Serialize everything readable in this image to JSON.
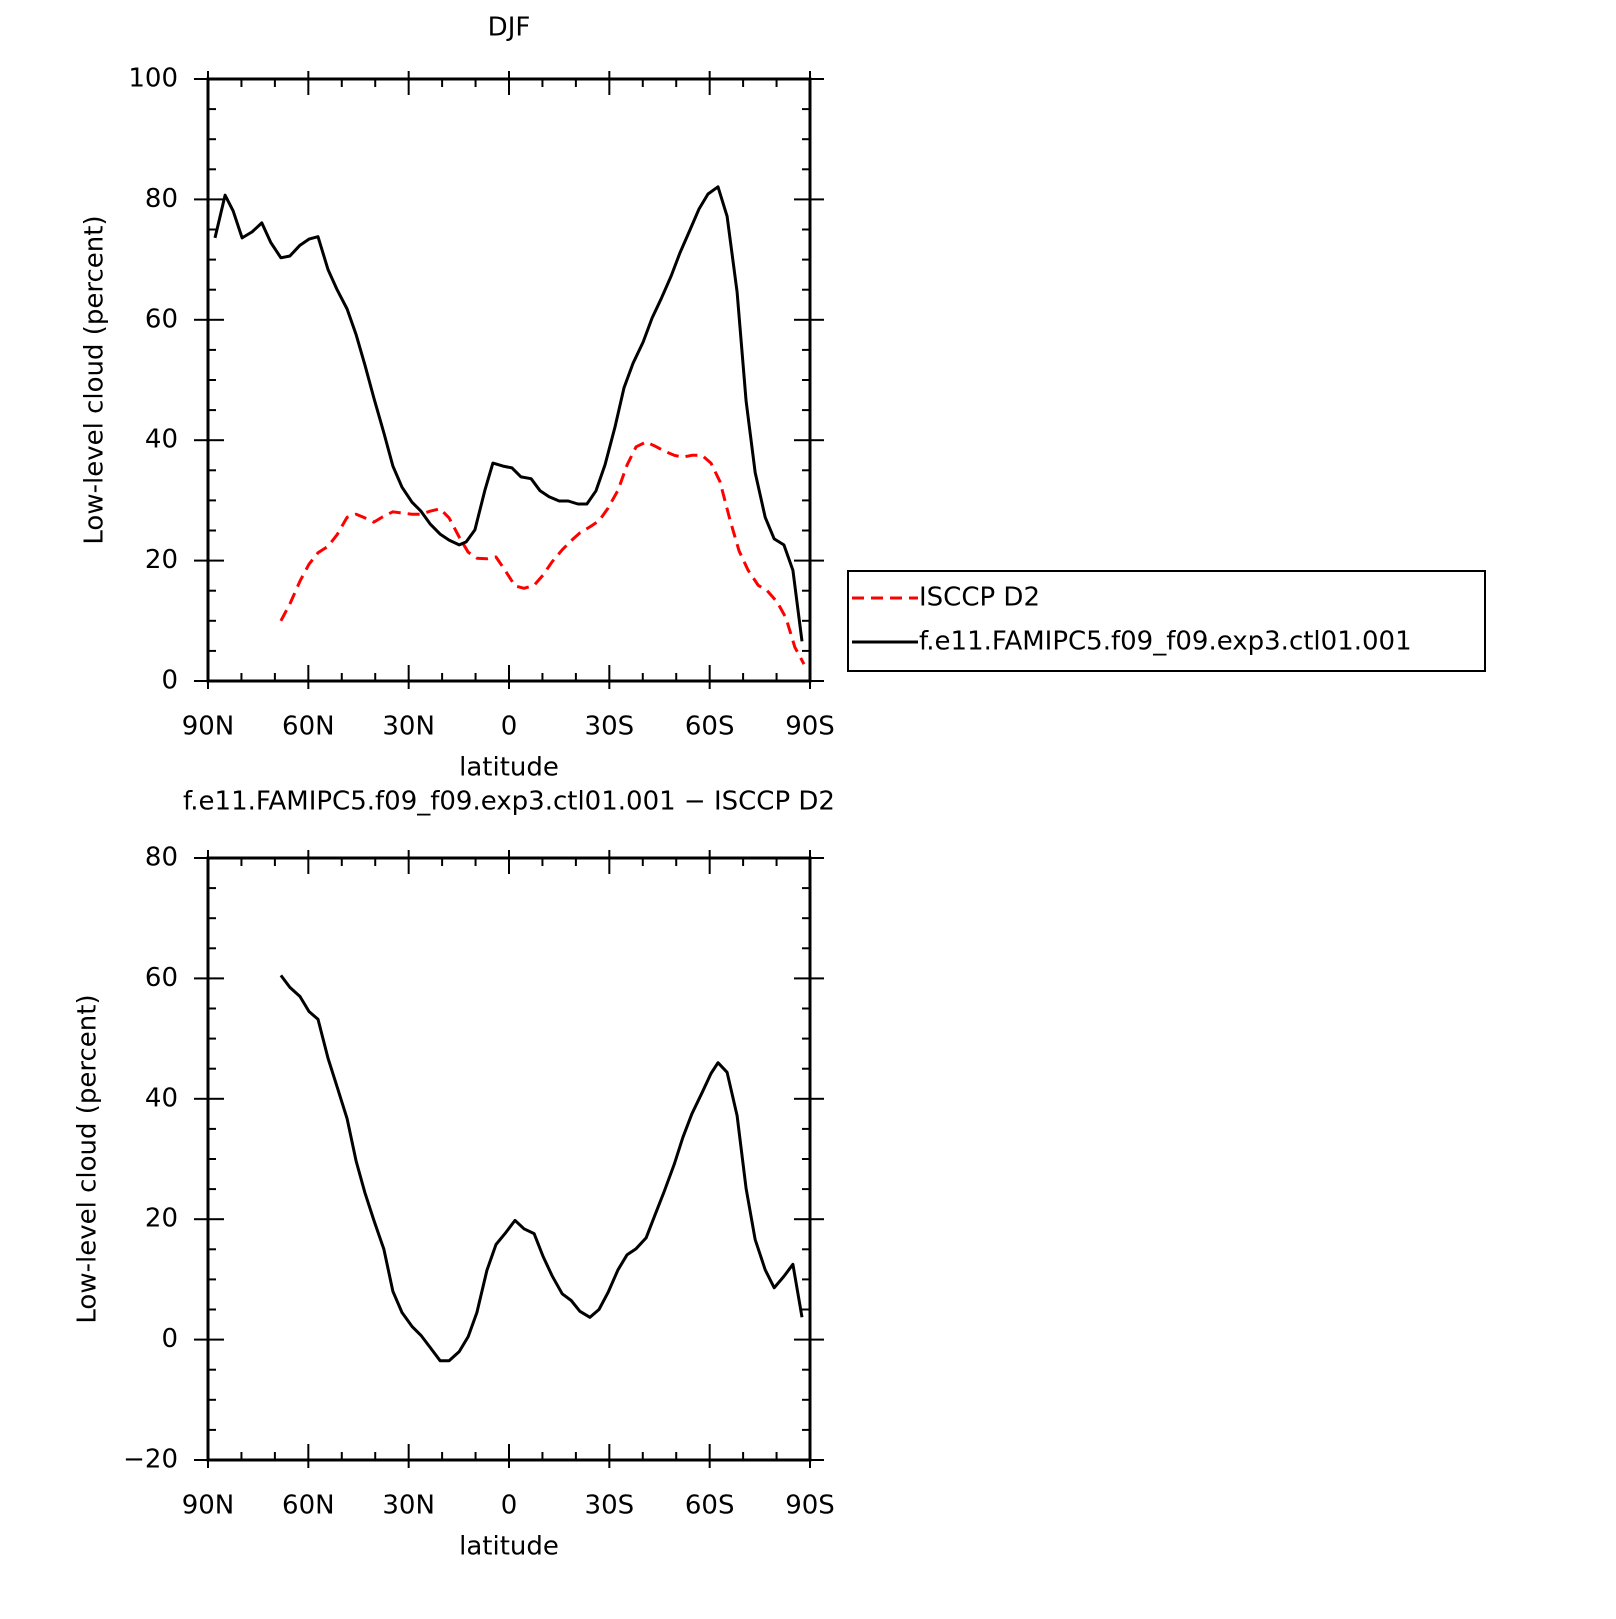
{
  "chart_data": [
    {
      "type": "line",
      "title": "DJF",
      "xlabel": "latitude",
      "ylabel": "Low-level cloud (percent)",
      "xlim": [
        90,
        -90
      ],
      "ylim": [
        0,
        100
      ],
      "xticks": [
        {
          "value": 90,
          "label": "90N"
        },
        {
          "value": 60,
          "label": "60N"
        },
        {
          "value": 30,
          "label": "30N"
        },
        0,
        {
          "value": -30,
          "label": "30S"
        },
        {
          "value": -60,
          "label": "60S"
        },
        {
          "value": -90,
          "label": "90S"
        }
      ],
      "xminorticks": [
        80,
        70,
        50,
        40,
        20,
        10,
        -10,
        -20,
        -40,
        -50,
        -70,
        -80
      ],
      "yticks": [
        0,
        20,
        40,
        60,
        80,
        100
      ],
      "yminorticks": [
        5,
        10,
        15,
        25,
        30,
        35,
        45,
        50,
        55,
        65,
        70,
        75,
        85,
        90,
        95
      ],
      "legend": "outside right",
      "series": [
        {
          "name": "ISCCP D2",
          "color": "#ff0000",
          "dash": true,
          "x": [
            68.2,
            65.5,
            62.5,
            59.8,
            57.1,
            54.1,
            51.4,
            48.4,
            45.7,
            43.1,
            40.4,
            37.4,
            34.7,
            32.0,
            29.0,
            26.3,
            23.6,
            20.6,
            17.9,
            14.9,
            12.2,
            9.6,
            6.6,
            3.9,
            1.2,
            -1.8,
            -4.5,
            -7.5,
            -10.2,
            -12.9,
            -15.9,
            -18.6,
            -21.2,
            -24.2,
            -26.9,
            -29.6,
            -32.6,
            -35.3,
            -38.0,
            -41.0,
            -43.7,
            -46.4,
            -49.4,
            -52.0,
            -54.7,
            -57.7,
            -60.4,
            -63.1,
            -66.1,
            -68.8,
            -71.5,
            -74.5,
            -77.2,
            -80.2,
            -82.8,
            -85.5,
            -88.2
          ],
          "values": [
            10.0,
            12.8,
            16.6,
            19.4,
            21.3,
            22.4,
            24.3,
            27.2,
            27.7,
            27.1,
            26.4,
            27.4,
            28.1,
            27.9,
            27.7,
            27.7,
            28.2,
            28.6,
            27.1,
            23.9,
            21.4,
            20.4,
            20.3,
            20.6,
            18.4,
            15.8,
            15.4,
            15.9,
            17.6,
            19.8,
            21.8,
            23.3,
            24.6,
            25.6,
            26.6,
            28.7,
            31.7,
            35.9,
            38.9,
            39.7,
            39.0,
            38.2,
            37.5,
            37.2,
            37.5,
            37.5,
            36.2,
            33.1,
            26.7,
            21.6,
            18.4,
            15.9,
            15.0,
            13.1,
            10.5,
            5.6,
            2.8
          ]
        },
        {
          "name": "f.e11.FAMIPC5.f09_f09.exp3.ctl01.001",
          "color": "#000000",
          "dash": false,
          "x": [
            87.9,
            84.9,
            82.5,
            79.8,
            76.8,
            73.9,
            71.2,
            68.2,
            65.5,
            62.5,
            59.8,
            57.1,
            54.1,
            51.4,
            48.4,
            45.7,
            43.1,
            40.4,
            37.4,
            34.7,
            32.0,
            29.0,
            26.3,
            23.6,
            20.6,
            17.9,
            14.9,
            12.8,
            10.2,
            7.2,
            4.8,
            1.8,
            -0.9,
            -3.6,
            -6.6,
            -9.3,
            -12.0,
            -15.0,
            -17.7,
            -20.6,
            -23.3,
            -26.0,
            -28.7,
            -31.7,
            -34.4,
            -37.1,
            -40.1,
            -42.8,
            -45.5,
            -48.5,
            -51.1,
            -54.1,
            -56.8,
            -59.5,
            -62.5,
            -65.2,
            -68.2,
            -70.9,
            -73.6,
            -76.6,
            -79.3,
            -82.2,
            -84.9,
            -87.6
          ],
          "values": [
            73.6,
            80.7,
            78.1,
            73.6,
            74.6,
            76.1,
            72.8,
            70.3,
            70.6,
            72.4,
            73.4,
            73.8,
            68.3,
            65.0,
            61.8,
            57.5,
            52.5,
            47.0,
            41.2,
            35.7,
            32.2,
            29.7,
            28.2,
            26.1,
            24.4,
            23.4,
            22.6,
            23.1,
            25.1,
            31.7,
            36.2,
            35.7,
            35.4,
            33.9,
            33.6,
            31.6,
            30.6,
            29.9,
            29.9,
            29.4,
            29.4,
            31.6,
            35.9,
            42.2,
            48.7,
            52.8,
            56.3,
            60.3,
            63.5,
            67.3,
            71.1,
            74.9,
            78.4,
            80.9,
            82.1,
            77.2,
            64.6,
            46.5,
            34.6,
            27.2,
            23.6,
            22.6,
            18.4,
            6.6
          ]
        }
      ]
    },
    {
      "type": "line",
      "title": "f.e11.FAMIPC5.f09_f09.exp3.ctl01.001 − ISCCP D2",
      "xlabel": "latitude",
      "ylabel": "Low-level cloud (percent)",
      "xlim": [
        90,
        -90
      ],
      "ylim": [
        -20,
        80
      ],
      "xticks": [
        {
          "value": 90,
          "label": "90N"
        },
        {
          "value": 60,
          "label": "60N"
        },
        {
          "value": 30,
          "label": "30N"
        },
        0,
        {
          "value": -30,
          "label": "30S"
        },
        {
          "value": -60,
          "label": "60S"
        },
        {
          "value": -90,
          "label": "90S"
        }
      ],
      "xminorticks": [
        80,
        70,
        50,
        40,
        20,
        10,
        -10,
        -20,
        -40,
        -50,
        -70,
        -80
      ],
      "yticks": [
        {
          "value": -20,
          "label": "−20"
        },
        0,
        20,
        40,
        60,
        80
      ],
      "yminorticks": [
        -15,
        -10,
        -5,
        5,
        10,
        15,
        25,
        30,
        35,
        45,
        50,
        55,
        65,
        70,
        75
      ],
      "series": [
        {
          "color": "#000000",
          "dash": false,
          "x": [
            68.2,
            65.5,
            62.5,
            59.8,
            57.1,
            54.1,
            51.4,
            48.4,
            45.7,
            43.1,
            40.4,
            37.4,
            34.7,
            32.0,
            29.0,
            26.3,
            23.6,
            20.6,
            17.9,
            14.9,
            12.2,
            9.6,
            6.6,
            3.9,
            1.2,
            -1.8,
            -4.5,
            -7.5,
            -10.2,
            -12.9,
            -15.9,
            -18.6,
            -21.2,
            -24.2,
            -26.9,
            -29.6,
            -32.6,
            -35.3,
            -38.0,
            -41.0,
            -43.7,
            -46.4,
            -49.4,
            -52.0,
            -54.7,
            -57.7,
            -60.4,
            -62.5,
            -65.2,
            -68.2,
            -70.9,
            -73.6,
            -76.6,
            -79.3,
            -82.2,
            -84.9,
            -87.6
          ],
          "values": [
            60.5,
            58.5,
            57.0,
            54.5,
            53.2,
            46.7,
            42.0,
            36.7,
            29.6,
            24.4,
            19.8,
            15.0,
            8.0,
            4.5,
            2.2,
            0.7,
            -1.3,
            -3.5,
            -3.5,
            -2.0,
            0.5,
            4.5,
            11.5,
            15.8,
            17.6,
            19.8,
            18.4,
            17.6,
            13.8,
            10.6,
            7.6,
            6.5,
            4.7,
            3.7,
            5.0,
            7.8,
            11.6,
            14.1,
            15.1,
            16.9,
            20.8,
            24.6,
            29.1,
            33.6,
            37.5,
            41.0,
            44.2,
            46.0,
            44.4,
            37.2,
            25.1,
            16.6,
            11.6,
            8.6,
            10.5,
            12.5,
            3.7
          ]
        }
      ]
    }
  ]
}
